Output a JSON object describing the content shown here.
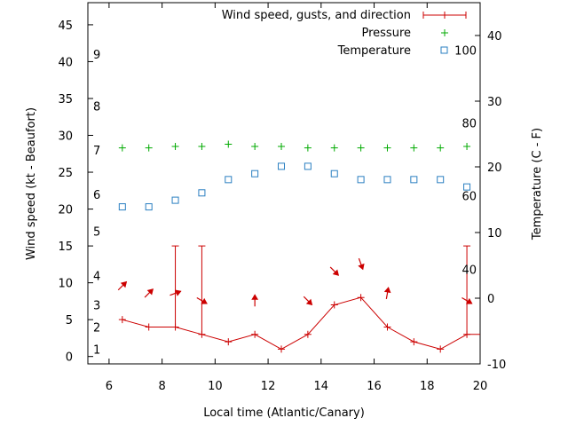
{
  "chart_data": {
    "type": "line",
    "xlabel": "Local time (Atlantic/Canary)",
    "ylabel_left": "Wind speed (kt - Beaufort)",
    "ylabel_right": "Temperature (C - F)",
    "xlim": [
      5.2,
      20
    ],
    "ylim_left": [
      -1,
      48
    ],
    "ylim_right": [
      -10,
      45
    ],
    "x_ticks": [
      6,
      8,
      10,
      12,
      14,
      16,
      18,
      20
    ],
    "y_left_ticks": [
      0,
      5,
      10,
      15,
      20,
      25,
      30,
      35,
      40,
      45
    ],
    "y_right_ticks": [
      -10,
      0,
      10,
      20,
      30,
      40
    ],
    "beaufort_labels": [
      {
        "label": "1",
        "y": 1
      },
      {
        "label": "2",
        "y": 4
      },
      {
        "label": "3",
        "y": 7
      },
      {
        "label": "4",
        "y": 11
      },
      {
        "label": "5",
        "y": 17
      },
      {
        "label": "6",
        "y": 22
      },
      {
        "label": "7",
        "y": 28
      },
      {
        "label": "8",
        "y": 34
      },
      {
        "label": "9",
        "y": 41
      }
    ],
    "fahrenheit_labels": [
      {
        "label": "40",
        "y": 4.4
      },
      {
        "label": "60",
        "y": 15.6
      },
      {
        "label": "80",
        "y": 26.7
      },
      {
        "label": "100",
        "y": 37.8
      }
    ],
    "legend": {
      "position": "top-right",
      "entries": [
        "Wind speed, gusts, and direction",
        "Pressure",
        "Temperature"
      ]
    },
    "series": [
      {
        "name": "Wind speed, gusts, and direction",
        "color": "#cc0000",
        "x": [
          6.5,
          7.5,
          8.5,
          9.5,
          10.5,
          11.5,
          12.5,
          13.5,
          14.5,
          15.5,
          16.5,
          17.5,
          18.5,
          19.5
        ],
        "speed": [
          5,
          4,
          4,
          3,
          2,
          3,
          1,
          3,
          7,
          8,
          4,
          2,
          1,
          3
        ],
        "gust": [
          null,
          null,
          15,
          15,
          null,
          null,
          null,
          null,
          null,
          null,
          null,
          null,
          null,
          15
        ],
        "direction_deg": [
          225,
          225,
          250,
          300,
          null,
          180,
          null,
          315,
          315,
          340,
          190,
          null,
          null,
          300
        ]
      },
      {
        "name": "Pressure",
        "color": "#00aa00",
        "x": [
          6.5,
          7.5,
          8.5,
          9.5,
          10.5,
          11.5,
          12.5,
          13.5,
          14.5,
          15.5,
          16.5,
          17.5,
          18.5,
          19.5
        ],
        "values": [
          28.3,
          28.3,
          28.5,
          28.5,
          28.8,
          28.5,
          28.5,
          28.3,
          28.3,
          28.3,
          28.3,
          28.3,
          28.3,
          28.5
        ]
      },
      {
        "name": "Temperature",
        "color": "#2a7fc1",
        "x": [
          6.5,
          7.5,
          8.5,
          9.5,
          10.5,
          11.5,
          12.5,
          13.5,
          14.5,
          15.5,
          16.5,
          17.5,
          18.5,
          19.5
        ],
        "values": [
          20.3,
          20.3,
          21.2,
          22.2,
          24.0,
          24.8,
          25.8,
          25.8,
          24.8,
          24.0,
          24.0,
          24.0,
          24.0,
          23.0
        ]
      }
    ]
  }
}
